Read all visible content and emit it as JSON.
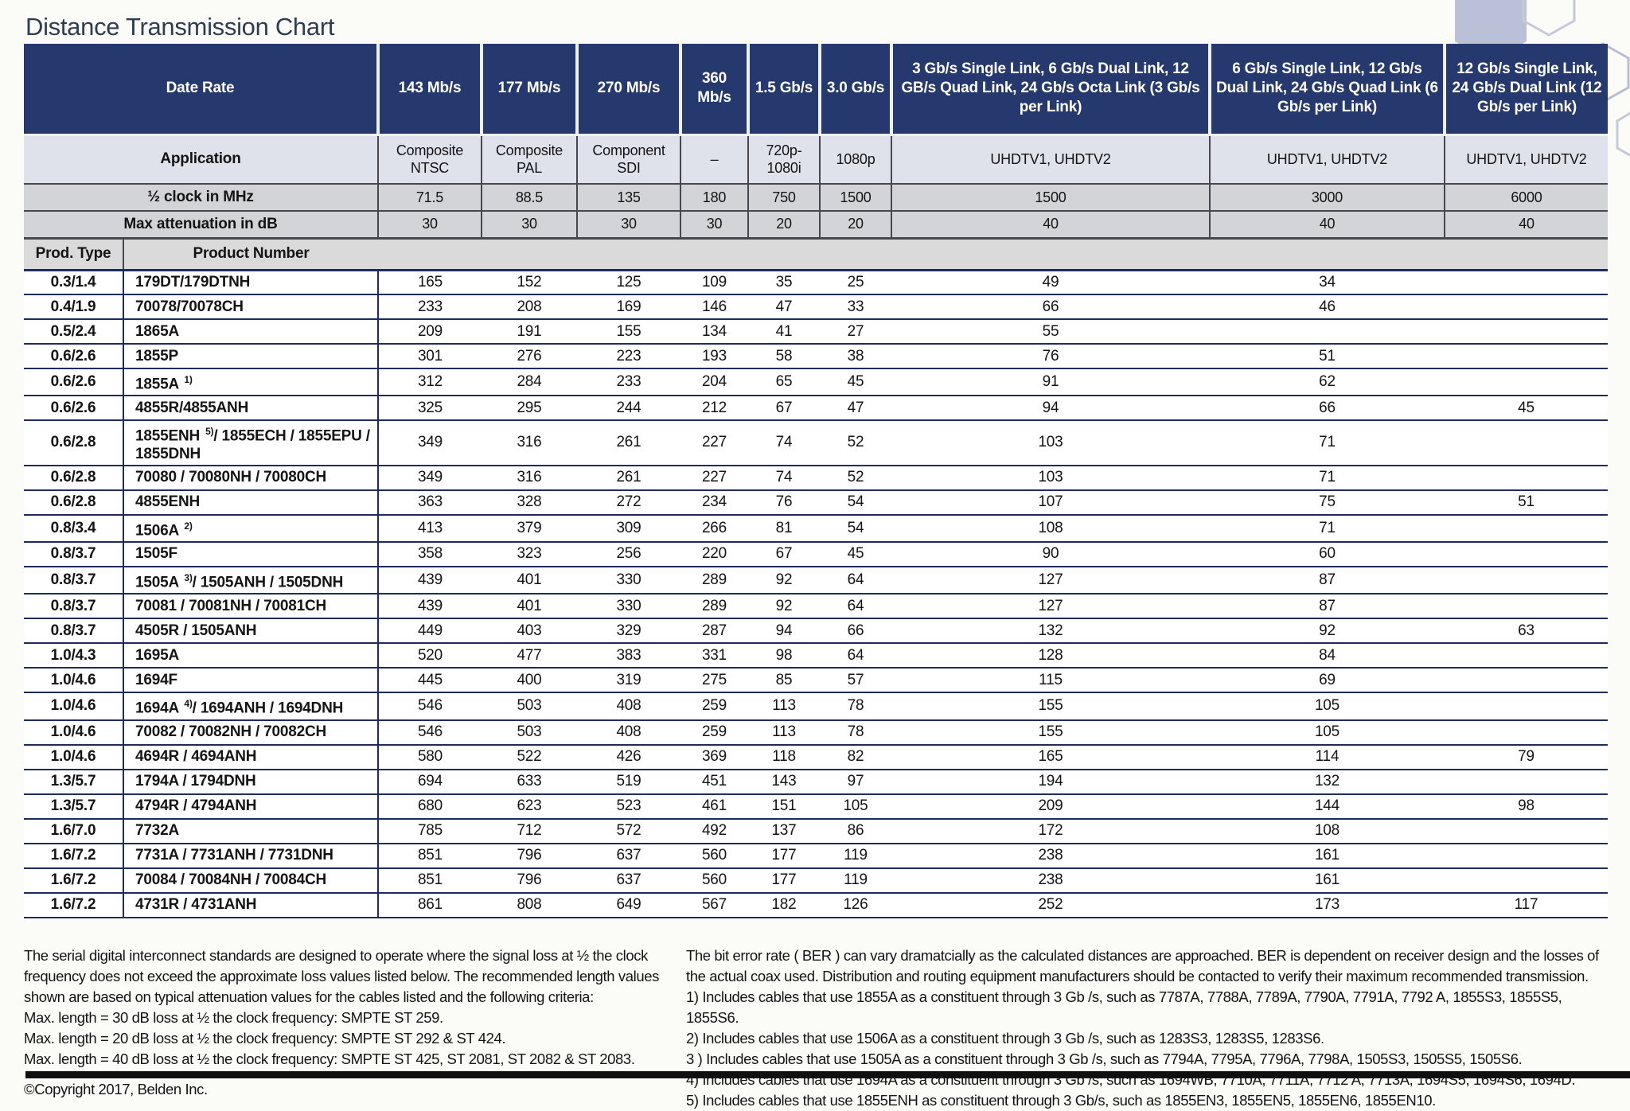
{
  "page": {
    "title": "Distance Transmission Chart"
  },
  "colors": {
    "header_navy": "#26396e",
    "row_gray": "#d3d4d8",
    "application_row": "#dfe1eb",
    "body_line_navy": "#1d2c5e"
  },
  "table": {
    "header": {
      "date_rate_label": "Date Rate",
      "application_label": "Application",
      "half_clock_label": "½ clock in MHz",
      "max_atten_label": "Max attenuation in dB",
      "prod_type_label": "Prod. Type",
      "product_number_label": "Product Number",
      "data_rates": [
        "143 Mb/s",
        "177 Mb/s",
        "270 Mb/s",
        "360 Mb/s",
        "1.5 Gb/s",
        "3.0 Gb/s",
        "3 Gb/s Single Link, 6 Gb/s Dual Link, 12 GB/s Quad Link, 24 Gb/s Octa Link (3 Gb/s per Link)",
        "6 Gb/s Single Link, 12 Gb/s Dual Link, 24 Gb/s Quad Link (6 Gb/s per Link)",
        "12 Gb/s Single Link, 24 Gb/s Dual Link (12 Gb/s per Link)"
      ],
      "applications": [
        "Composite NTSC",
        "Composite PAL",
        "Component SDI",
        "–",
        "720p-1080i",
        "1080p",
        "UHDTV1, UHDTV2",
        "UHDTV1, UHDTV2",
        "UHDTV1, UHDTV2"
      ],
      "half_clock": [
        "71.5",
        "88.5",
        "135",
        "180",
        "750",
        "1500",
        "1500",
        "3000",
        "6000"
      ],
      "max_attenuation": [
        "30",
        "30",
        "30",
        "30",
        "20",
        "20",
        "40",
        "40",
        "40"
      ]
    },
    "rows": [
      {
        "prod_type": "0.3/1.4",
        "product": "179DT/179DTNH",
        "sup": "",
        "rest": "",
        "values": [
          "165",
          "152",
          "125",
          "109",
          "35",
          "25",
          "49",
          "34",
          ""
        ]
      },
      {
        "prod_type": "0.4/1.9",
        "product": "70078/70078CH",
        "sup": "",
        "rest": "",
        "values": [
          "233",
          "208",
          "169",
          "146",
          "47",
          "33",
          "66",
          "46",
          ""
        ]
      },
      {
        "prod_type": "0.5/2.4",
        "product": "1865A",
        "sup": "",
        "rest": "",
        "values": [
          "209",
          "191",
          "155",
          "134",
          "41",
          "27",
          "55",
          "",
          ""
        ]
      },
      {
        "prod_type": "0.6/2.6",
        "product": "1855P",
        "sup": "",
        "rest": "",
        "values": [
          "301",
          "276",
          "223",
          "193",
          "58",
          "38",
          "76",
          "51",
          ""
        ]
      },
      {
        "prod_type": "0.6/2.6",
        "product": "1855A",
        "sup": "1)",
        "rest": "",
        "values": [
          "312",
          "284",
          "233",
          "204",
          "65",
          "45",
          "91",
          "62",
          ""
        ]
      },
      {
        "prod_type": "0.6/2.6",
        "product": "4855R/4855ANH",
        "sup": "",
        "rest": "",
        "values": [
          "325",
          "295",
          "244",
          "212",
          "67",
          "47",
          "94",
          "66",
          "45"
        ]
      },
      {
        "prod_type": "0.6/2.8",
        "product": "1855ENH",
        "sup": "5)",
        "rest": "/ 1855ECH / 1855EPU / 1855DNH",
        "values": [
          "349",
          "316",
          "261",
          "227",
          "74",
          "52",
          "103",
          "71",
          ""
        ]
      },
      {
        "prod_type": "0.6/2.8",
        "product": "70080 / 70080NH / 70080CH",
        "sup": "",
        "rest": "",
        "values": [
          "349",
          "316",
          "261",
          "227",
          "74",
          "52",
          "103",
          "71",
          ""
        ]
      },
      {
        "prod_type": "0.6/2.8",
        "product": "4855ENH",
        "sup": "",
        "rest": "",
        "values": [
          "363",
          "328",
          "272",
          "234",
          "76",
          "54",
          "107",
          "75",
          "51"
        ]
      },
      {
        "prod_type": "0.8/3.4",
        "product": "1506A",
        "sup": "2)",
        "rest": "",
        "values": [
          "413",
          "379",
          "309",
          "266",
          "81",
          "54",
          "108",
          "71",
          ""
        ]
      },
      {
        "prod_type": "0.8/3.7",
        "product": "1505F",
        "sup": "",
        "rest": "",
        "values": [
          "358",
          "323",
          "256",
          "220",
          "67",
          "45",
          "90",
          "60",
          ""
        ]
      },
      {
        "prod_type": "0.8/3.7",
        "product": "1505A",
        "sup": "3)",
        "rest": "/ 1505ANH / 1505DNH",
        "values": [
          "439",
          "401",
          "330",
          "289",
          "92",
          "64",
          "127",
          "87",
          ""
        ]
      },
      {
        "prod_type": "0.8/3.7",
        "product": "70081 / 70081NH / 70081CH",
        "sup": "",
        "rest": "",
        "values": [
          "439",
          "401",
          "330",
          "289",
          "92",
          "64",
          "127",
          "87",
          ""
        ]
      },
      {
        "prod_type": "0.8/3.7",
        "product": "4505R / 1505ANH",
        "sup": "",
        "rest": "",
        "values": [
          "449",
          "403",
          "329",
          "287",
          "94",
          "66",
          "132",
          "92",
          "63"
        ]
      },
      {
        "prod_type": "1.0/4.3",
        "product": "1695A",
        "sup": "",
        "rest": "",
        "values": [
          "520",
          "477",
          "383",
          "331",
          "98",
          "64",
          "128",
          "84",
          ""
        ]
      },
      {
        "prod_type": "1.0/4.6",
        "product": "1694F",
        "sup": "",
        "rest": "",
        "values": [
          "445",
          "400",
          "319",
          "275",
          "85",
          "57",
          "115",
          "69",
          ""
        ]
      },
      {
        "prod_type": "1.0/4.6",
        "product": "1694A",
        "sup": "4)",
        "rest": "/ 1694ANH / 1694DNH",
        "values": [
          "546",
          "503",
          "408",
          "259",
          "113",
          "78",
          "155",
          "105",
          ""
        ]
      },
      {
        "prod_type": "1.0/4.6",
        "product": "70082 / 70082NH / 70082CH",
        "sup": "",
        "rest": "",
        "values": [
          "546",
          "503",
          "408",
          "259",
          "113",
          "78",
          "155",
          "105",
          ""
        ]
      },
      {
        "prod_type": "1.0/4.6",
        "product": "4694R / 4694ANH",
        "sup": "",
        "rest": "",
        "values": [
          "580",
          "522",
          "426",
          "369",
          "118",
          "82",
          "165",
          "114",
          "79"
        ]
      },
      {
        "prod_type": "1.3/5.7",
        "product": "1794A / 1794DNH",
        "sup": "",
        "rest": "",
        "values": [
          "694",
          "633",
          "519",
          "451",
          "143",
          "97",
          "194",
          "132",
          ""
        ]
      },
      {
        "prod_type": "1.3/5.7",
        "product": "4794R / 4794ANH",
        "sup": "",
        "rest": "",
        "values": [
          "680",
          "623",
          "523",
          "461",
          "151",
          "105",
          "209",
          "144",
          "98"
        ]
      },
      {
        "prod_type": "1.6/7.0",
        "product": "7732A",
        "sup": "",
        "rest": "",
        "values": [
          "785",
          "712",
          "572",
          "492",
          "137",
          "86",
          "172",
          "108",
          ""
        ]
      },
      {
        "prod_type": "1.6/7.2",
        "product": "7731A / 7731ANH / 7731DNH",
        "sup": "",
        "rest": "",
        "values": [
          "851",
          "796",
          "637",
          "560",
          "177",
          "119",
          "238",
          "161",
          ""
        ]
      },
      {
        "prod_type": "1.6/7.2",
        "product": "70084 / 70084NH / 70084CH",
        "sup": "",
        "rest": "",
        "values": [
          "851",
          "796",
          "637",
          "560",
          "177",
          "119",
          "238",
          "161",
          ""
        ]
      },
      {
        "prod_type": "1.6/7.2",
        "product": "4731R / 4731ANH",
        "sup": "",
        "rest": "",
        "values": [
          "861",
          "808",
          "649",
          "567",
          "182",
          "126",
          "252",
          "173",
          "117"
        ]
      }
    ]
  },
  "footer": {
    "left_intro": "The serial digital interconnect standards are designed to operate where the signal loss at ½ the clock frequency does not exceed the approximate loss values listed below. The recommended length values shown are based on typical attenuation values for the cables listed and the following criteria:",
    "criteria": [
      "Max. length = 30 dB loss at ½ the clock frequency: SMPTE ST 259.",
      "Max. length = 20 dB loss at ½ the clock frequency: SMPTE ST 292 & ST 424.",
      "Max. length = 40 dB loss at ½ the clock frequency: SMPTE ST 425, ST 2081, ST 2082 & ST 2083."
    ],
    "copyright": "©Copyright 2017, Belden Inc.",
    "right_intro": "The bit error rate ( BER ) can vary dramatcially as the calculated distances are approached. BER is dependent on receiver design and the losses of the actual coax used. Distribution and routing equipment manufacturers should be contacted to verify their maximum recommended transmission.",
    "notes": [
      "1) Includes cables that use 1855A as a constituent through 3 Gb /s, such as 7787A, 7788A, 7789A, 7790A, 7791A, 7792 A, 1855S3, 1855S5, 1855S6.",
      "2) Includes cables that use 1506A as a constituent through 3 Gb /s, such as 1283S3, 1283S5, 1283S6.",
      "3 ) Includes cables that use 1505A as a constituent through 3 Gb /s, such as 7794A, 7795A, 7796A, 7798A, 1505S3, 1505S5, 1505S6.",
      "4) Includes cables that use 1694A as a constituent through 3 Gb /s, such as 1694WB, 7710A, 7711A, 7712 A, 7713A, 1694S5, 1694S6, 1694D.",
      "5) Includes cables that use 1855ENH as constituent through 3 Gb/s, such as 1855EN3, 1855EN5, 1855EN6, 1855EN10."
    ]
  }
}
